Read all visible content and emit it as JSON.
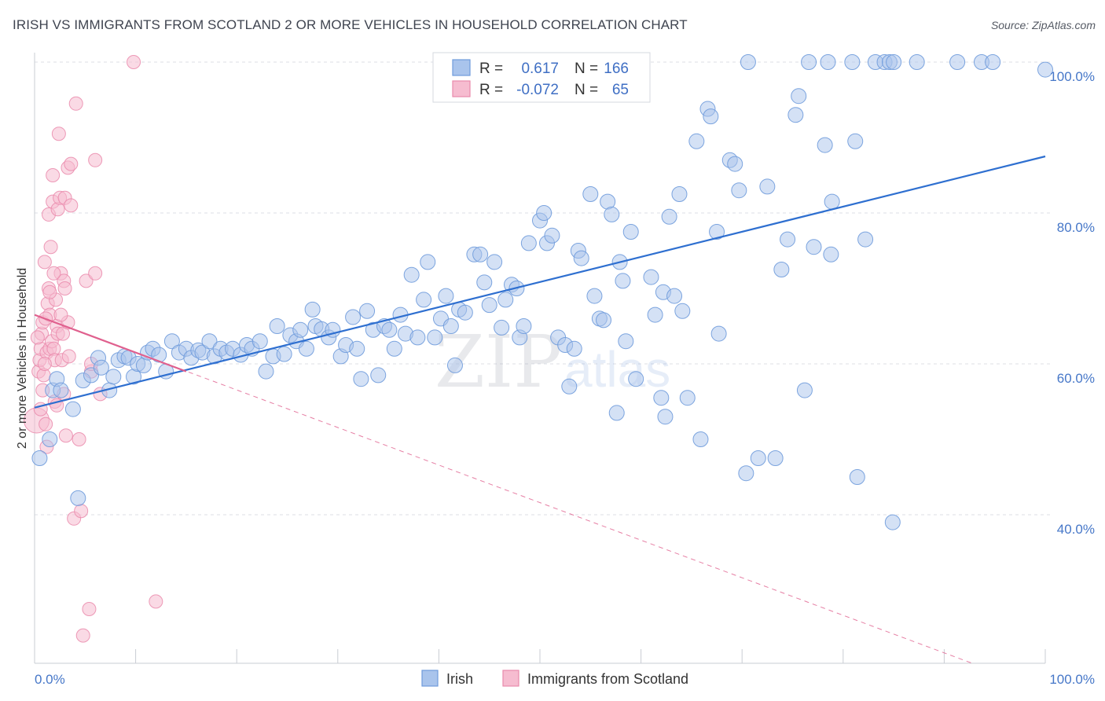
{
  "title": "IRISH VS IMMIGRANTS FROM SCOTLAND 2 OR MORE VEHICLES IN HOUSEHOLD CORRELATION CHART",
  "source": "Source: ZipAtlas.com",
  "watermark": {
    "zip": "ZIP",
    "atlas": "atlas"
  },
  "colors": {
    "irish_fill": "#a9c4ec",
    "irish_stroke": "#6f9bdc",
    "irish_line": "#2e6fd0",
    "scot_fill": "#f6bcd0",
    "scot_stroke": "#ea8aac",
    "scot_line": "#e0608e",
    "tick_blue": "#4677c8",
    "grid": "#dcdfe6"
  },
  "legend": {
    "rows": [
      {
        "r_label": "R =",
        "r_value": "0.617",
        "n_label": "N =",
        "n_value": "166"
      },
      {
        "r_label": "R =",
        "r_value": "-0.072",
        "n_label": "N =",
        "n_value": "65"
      }
    ]
  },
  "chart_data": {
    "type": "scatter",
    "title": "IRISH VS IMMIGRANTS FROM SCOTLAND 2 OR MORE VEHICLES IN HOUSEHOLD CORRELATION CHART",
    "xlabel": "",
    "ylabel": "2 or more Vehicles in Household",
    "xlim": [
      0,
      100
    ],
    "ylim": [
      20,
      102
    ],
    "x_tick_labels": [
      "0.0%",
      "100.0%"
    ],
    "y_ticks": [
      40,
      60,
      80,
      100
    ],
    "y_tick_labels": [
      "40.0%",
      "60.0%",
      "80.0%",
      "100.0%"
    ],
    "grid": true,
    "series": [
      {
        "name": "Irish",
        "r": 0.617,
        "n": 166,
        "trend": {
          "x": [
            0,
            100
          ],
          "y": [
            54.2,
            87.5
          ],
          "style": "solid"
        },
        "points": [
          [
            0.5,
            47.5
          ],
          [
            1.5,
            50
          ],
          [
            1.8,
            56.5
          ],
          [
            2.2,
            58
          ],
          [
            2.6,
            56.5
          ],
          [
            3.8,
            54
          ],
          [
            4.3,
            42.2
          ],
          [
            4.8,
            57.8
          ],
          [
            5.6,
            58.5
          ],
          [
            6.3,
            60.8
          ],
          [
            6.6,
            59.5
          ],
          [
            7.4,
            56.5
          ],
          [
            7.8,
            58.3
          ],
          [
            8.3,
            60.5
          ],
          [
            8.9,
            61
          ],
          [
            9.3,
            60.8
          ],
          [
            9.8,
            58.3
          ],
          [
            10.2,
            60
          ],
          [
            10.8,
            59.8
          ],
          [
            11.2,
            61.5
          ],
          [
            11.7,
            62
          ],
          [
            12.3,
            61.2
          ],
          [
            13.0,
            59
          ],
          [
            13.6,
            63
          ],
          [
            14.3,
            61.5
          ],
          [
            15.0,
            62
          ],
          [
            15.5,
            60.8
          ],
          [
            16.2,
            61.8
          ],
          [
            16.6,
            61.5
          ],
          [
            17.3,
            63
          ],
          [
            17.8,
            61
          ],
          [
            18.4,
            62
          ],
          [
            19.0,
            61.5
          ],
          [
            19.6,
            62
          ],
          [
            20.4,
            61.2
          ],
          [
            21.0,
            62.5
          ],
          [
            21.5,
            62
          ],
          [
            22.3,
            63
          ],
          [
            22.9,
            59
          ],
          [
            23.6,
            61
          ],
          [
            24.0,
            65
          ],
          [
            24.7,
            61.3
          ],
          [
            25.3,
            63.8
          ],
          [
            25.9,
            63
          ],
          [
            26.3,
            64.5
          ],
          [
            26.9,
            62
          ],
          [
            27.5,
            67.2
          ],
          [
            27.8,
            65
          ],
          [
            28.4,
            64.6
          ],
          [
            29.1,
            63.5
          ],
          [
            29.5,
            64.5
          ],
          [
            30.3,
            61
          ],
          [
            30.8,
            62.5
          ],
          [
            31.5,
            66.2
          ],
          [
            31.9,
            62
          ],
          [
            32.3,
            58
          ],
          [
            32.9,
            67
          ],
          [
            33.5,
            64.5
          ],
          [
            34.0,
            58.5
          ],
          [
            34.6,
            65
          ],
          [
            35.1,
            64.5
          ],
          [
            35.6,
            62
          ],
          [
            36.2,
            66.5
          ],
          [
            36.7,
            64
          ],
          [
            37.3,
            71.8
          ],
          [
            37.9,
            63.5
          ],
          [
            38.5,
            68.5
          ],
          [
            38.9,
            73.5
          ],
          [
            39.6,
            63.5
          ],
          [
            40.2,
            66
          ],
          [
            40.7,
            69
          ],
          [
            41.2,
            65
          ],
          [
            41.6,
            59.8
          ],
          [
            42.0,
            67.2
          ],
          [
            42.6,
            66.8
          ],
          [
            43.5,
            74.5
          ],
          [
            44.1,
            74.5
          ],
          [
            44.5,
            70.8
          ],
          [
            45.0,
            67.8
          ],
          [
            45.5,
            73.5
          ],
          [
            46.2,
            64.8
          ],
          [
            46.6,
            68.5
          ],
          [
            47.2,
            70.5
          ],
          [
            47.7,
            70
          ],
          [
            48.0,
            63.5
          ],
          [
            48.4,
            65
          ],
          [
            48.9,
            76
          ],
          [
            50.0,
            79
          ],
          [
            50.4,
            80
          ],
          [
            50.7,
            76
          ],
          [
            51.2,
            77
          ],
          [
            51.8,
            63.5
          ],
          [
            52.5,
            62.5
          ],
          [
            52.9,
            57
          ],
          [
            53.4,
            62
          ],
          [
            53.8,
            75
          ],
          [
            54.1,
            74
          ],
          [
            55.0,
            82.5
          ],
          [
            55.4,
            69
          ],
          [
            55.9,
            66
          ],
          [
            56.3,
            65.8
          ],
          [
            56.7,
            81.5
          ],
          [
            57.1,
            79.8
          ],
          [
            57.6,
            53.5
          ],
          [
            57.9,
            73.5
          ],
          [
            58.2,
            71
          ],
          [
            58.5,
            63
          ],
          [
            59.0,
            77.5
          ],
          [
            59.5,
            58
          ],
          [
            61.0,
            71.5
          ],
          [
            61.4,
            66.5
          ],
          [
            62.0,
            55.5
          ],
          [
            62.2,
            69.5
          ],
          [
            62.4,
            53
          ],
          [
            62.8,
            79.5
          ],
          [
            63.3,
            69
          ],
          [
            63.8,
            82.5
          ],
          [
            64.1,
            67
          ],
          [
            64.6,
            55.5
          ],
          [
            65.5,
            89.5
          ],
          [
            65.9,
            50
          ],
          [
            66.6,
            93.8
          ],
          [
            66.9,
            92.8
          ],
          [
            67.5,
            77.5
          ],
          [
            67.7,
            64
          ],
          [
            68.8,
            87
          ],
          [
            69.3,
            86.5
          ],
          [
            69.7,
            83
          ],
          [
            70.4,
            45.5
          ],
          [
            70.6,
            100
          ],
          [
            71.6,
            47.5
          ],
          [
            72.5,
            83.5
          ],
          [
            73.3,
            47.5
          ],
          [
            73.9,
            72.5
          ],
          [
            74.5,
            76.5
          ],
          [
            75.3,
            93
          ],
          [
            75.6,
            95.5
          ],
          [
            76.2,
            56.5
          ],
          [
            76.6,
            100
          ],
          [
            77.1,
            75.5
          ],
          [
            78.2,
            89
          ],
          [
            78.5,
            100
          ],
          [
            78.9,
            81.5
          ],
          [
            78.8,
            74.5
          ],
          [
            80.9,
            100
          ],
          [
            81.2,
            89.5
          ],
          [
            81.4,
            45
          ],
          [
            82.2,
            76.5
          ],
          [
            83.2,
            100
          ],
          [
            84.1,
            100
          ],
          [
            84.6,
            100
          ],
          [
            85.0,
            100
          ],
          [
            84.9,
            39
          ],
          [
            87.3,
            100
          ],
          [
            91.3,
            100
          ],
          [
            93.7,
            100
          ],
          [
            94.8,
            100
          ],
          [
            100,
            99
          ]
        ]
      },
      {
        "name": "Immigrants from Scotland",
        "r": -0.072,
        "n": 65,
        "trend": {
          "x": [
            0,
            15
          ],
          "y": [
            66.5,
            59
          ],
          "style": "solid",
          "extended_x": [
            0,
            93
          ],
          "extended_y": [
            66.5,
            20.2
          ],
          "extended_style": "dashed"
        },
        "points": [
          [
            0.2,
            52.5
          ],
          [
            0.4,
            59
          ],
          [
            0.5,
            60.5
          ],
          [
            0.6,
            62
          ],
          [
            0.7,
            64
          ],
          [
            0.8,
            65.5
          ],
          [
            0.9,
            58.5
          ],
          [
            1.0,
            73.5
          ],
          [
            1.1,
            52
          ],
          [
            1.2,
            49
          ],
          [
            1.2,
            61.5
          ],
          [
            1.3,
            68
          ],
          [
            1.4,
            70
          ],
          [
            1.4,
            79.8
          ],
          [
            1.5,
            62
          ],
          [
            1.5,
            66.5
          ],
          [
            1.6,
            75.5
          ],
          [
            1.7,
            63
          ],
          [
            1.8,
            81.5
          ],
          [
            1.8,
            85
          ],
          [
            1.9,
            62
          ],
          [
            2.0,
            60.5
          ],
          [
            2.0,
            55
          ],
          [
            2.1,
            68.5
          ],
          [
            2.2,
            65
          ],
          [
            2.3,
            80.5
          ],
          [
            2.3,
            64
          ],
          [
            2.4,
            90.5
          ],
          [
            2.5,
            82
          ],
          [
            2.6,
            72
          ],
          [
            2.7,
            60.5
          ],
          [
            2.8,
            64
          ],
          [
            2.9,
            71
          ],
          [
            2.9,
            56
          ],
          [
            3.0,
            70
          ],
          [
            3.0,
            82
          ],
          [
            3.1,
            50.5
          ],
          [
            3.3,
            86
          ],
          [
            3.3,
            65.5
          ],
          [
            3.6,
            86.5
          ],
          [
            3.6,
            81
          ],
          [
            3.9,
            39.5
          ],
          [
            4.1,
            94.5
          ],
          [
            4.4,
            50
          ],
          [
            4.6,
            40.5
          ],
          [
            4.8,
            24
          ],
          [
            5.1,
            71
          ],
          [
            5.4,
            27.5
          ],
          [
            5.6,
            59
          ],
          [
            5.6,
            60
          ],
          [
            6.0,
            72
          ],
          [
            6.0,
            87
          ],
          [
            6.5,
            56
          ],
          [
            9.8,
            100
          ],
          [
            12.0,
            28.5
          ],
          [
            1.0,
            60
          ],
          [
            1.1,
            66
          ],
          [
            0.3,
            63.5
          ],
          [
            0.8,
            56.5
          ],
          [
            1.5,
            69.5
          ],
          [
            2.2,
            54.5
          ],
          [
            1.9,
            72
          ],
          [
            2.6,
            66.5
          ],
          [
            0.6,
            54
          ],
          [
            3.4,
            61
          ]
        ]
      }
    ]
  }
}
